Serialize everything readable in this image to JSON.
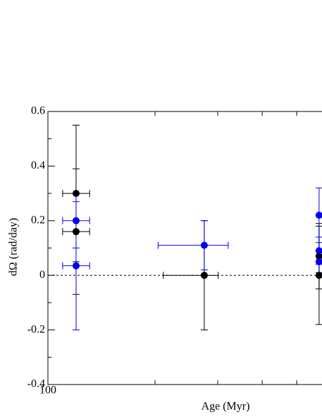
{
  "chart_data": {
    "type": "scatter",
    "xlabel": "Age (Myr)",
    "ylabel": "dΩ (rad/day)",
    "xlog": true,
    "xlim": [
      100,
      589
    ],
    "xticks": [
      100
    ],
    "minor_xticks": [
      200,
      300,
      400,
      500
    ],
    "ylim": [
      -0.4,
      0.6
    ],
    "yticks": [
      0.6,
      0.4,
      0.2,
      0,
      -0.2,
      -0.4
    ],
    "minor_yticks": [
      0.5,
      0.3,
      0.1,
      -0.1,
      -0.3
    ],
    "hline": 0,
    "series": [
      {
        "color": "#000000",
        "x": [
          120,
          120,
          275,
          578,
          578
        ],
        "values": [
          0.3,
          0.16,
          0,
          0.07,
          0
        ],
        "yerr": [
          0.25,
          0.23,
          0.2,
          0.12,
          0.18
        ],
        "xerr": [
          [
            10,
            11
          ],
          [
            10,
            11
          ],
          [
            64,
            26
          ],
          null,
          null
        ]
      },
      {
        "color": "#0000ee",
        "x": [
          120,
          120,
          275,
          578,
          578,
          578
        ],
        "values": [
          0.2,
          0.035,
          0.11,
          0.22,
          0.09,
          0.05
        ],
        "yerr": [
          0.1,
          0.235,
          0.09,
          0.1,
          0.05,
          0.04
        ],
        "xerr": [
          [
            10,
            11
          ],
          [
            10,
            11
          ],
          [
            71,
            46
          ],
          null,
          null,
          null
        ]
      }
    ]
  }
}
